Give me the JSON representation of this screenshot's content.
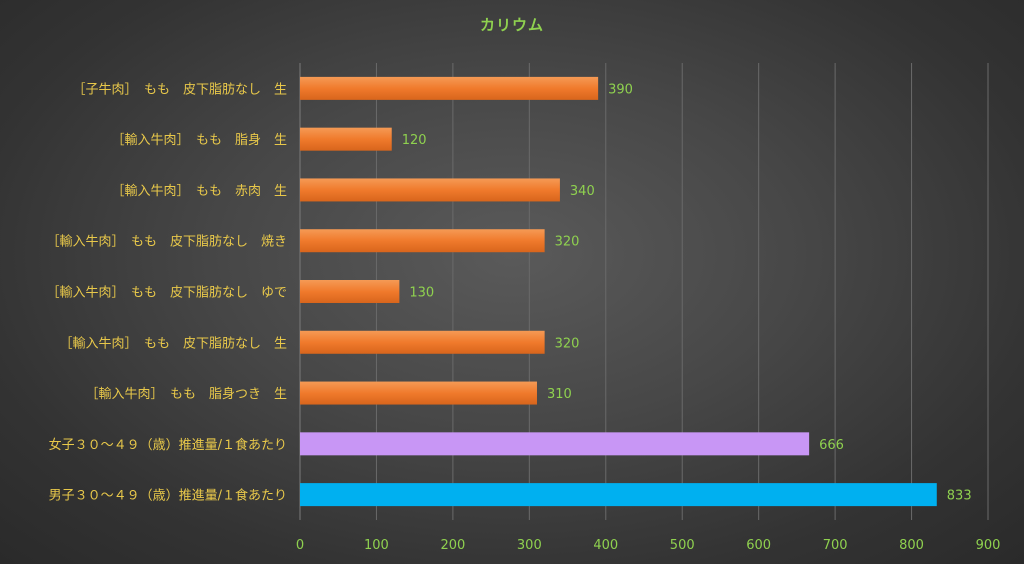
{
  "chart_data": {
    "type": "bar",
    "orientation": "horizontal",
    "title": "カリウム",
    "categories": [
      "［子牛肉］　もも　皮下脂肪なし　生",
      "［輸入牛肉］　もも　脂身　生",
      "［輸入牛肉］　もも　赤肉　生",
      "［輸入牛肉］　もも　皮下脂肪なし　焼き",
      "［輸入牛肉］　もも　皮下脂肪なし　ゆで",
      "［輸入牛肉］　もも　皮下脂肪なし　生",
      "［輸入牛肉］　もも　脂身つき　生",
      "女子３０～４９（歳）推進量/１食あたり",
      "男子３０～４９（歳）推進量/１食あたり"
    ],
    "values": [
      390,
      120,
      340,
      320,
      130,
      320,
      310,
      666,
      833
    ],
    "bar_colors": [
      "#f07a2c",
      "#f07a2c",
      "#f07a2c",
      "#f07a2c",
      "#f07a2c",
      "#f07a2c",
      "#f07a2c",
      "#c896f5",
      "#00b0f0"
    ],
    "xlim": [
      0,
      900
    ],
    "xticks": [
      "0",
      "100",
      "200",
      "300",
      "400",
      "500",
      "600",
      "700",
      "800",
      "900"
    ],
    "grid": true,
    "colors": {
      "title": "#8fd14f",
      "category_label": "#e8c84a",
      "tick_label": "#8fd14f",
      "value_label": "#8fd14f",
      "gridline": "#6a6a6a"
    }
  }
}
